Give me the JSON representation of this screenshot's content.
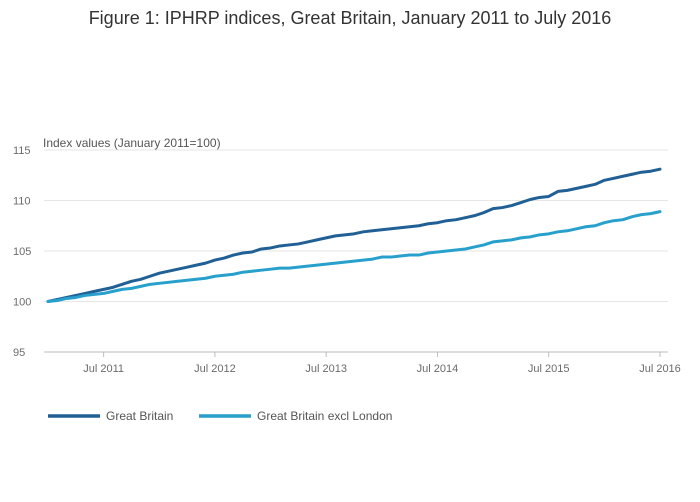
{
  "chart_data": {
    "type": "line",
    "title": "Figure 1: IPHRP indices, Great Britain, January 2011 to July 2016",
    "ylabel": "Index values (January 2011=100)",
    "xlabel": "",
    "ylim": [
      95,
      115
    ],
    "yticks": [
      95,
      100,
      105,
      110,
      115
    ],
    "xticks": [
      {
        "label": "Jul 2011",
        "t": 6
      },
      {
        "label": "Jul 2012",
        "t": 18
      },
      {
        "label": "Jul 2013",
        "t": 30
      },
      {
        "label": "Jul 2014",
        "t": 42
      },
      {
        "label": "Jul 2015",
        "t": 54
      },
      {
        "label": "Jul 2016",
        "t": 66
      }
    ],
    "x_start": "Jan 2011",
    "x_end": "Jul 2016",
    "grid": true,
    "legend_position": "bottom",
    "series": [
      {
        "name": "Great Britain",
        "color": "#206095",
        "values": [
          100.0,
          100.2,
          100.4,
          100.6,
          100.8,
          101.0,
          101.2,
          101.4,
          101.7,
          102.0,
          102.2,
          102.5,
          102.8,
          103.0,
          103.2,
          103.4,
          103.6,
          103.8,
          104.1,
          104.3,
          104.6,
          104.8,
          104.9,
          105.2,
          105.3,
          105.5,
          105.6,
          105.7,
          105.9,
          106.1,
          106.3,
          106.5,
          106.6,
          106.7,
          106.9,
          107.0,
          107.1,
          107.2,
          107.3,
          107.4,
          107.5,
          107.7,
          107.8,
          108.0,
          108.1,
          108.3,
          108.5,
          108.8,
          109.2,
          109.3,
          109.5,
          109.8,
          110.1,
          110.3,
          110.4,
          110.9,
          111.0,
          111.2,
          111.4,
          111.6,
          112.0,
          112.2,
          112.4,
          112.6,
          112.8,
          112.9,
          113.1
        ]
      },
      {
        "name": "Great Britain excl London",
        "color": "#27a0cc",
        "values": [
          100.0,
          100.1,
          100.3,
          100.4,
          100.6,
          100.7,
          100.8,
          101.0,
          101.2,
          101.3,
          101.5,
          101.7,
          101.8,
          101.9,
          102.0,
          102.1,
          102.2,
          102.3,
          102.5,
          102.6,
          102.7,
          102.9,
          103.0,
          103.1,
          103.2,
          103.3,
          103.3,
          103.4,
          103.5,
          103.6,
          103.7,
          103.8,
          103.9,
          104.0,
          104.1,
          104.2,
          104.4,
          104.4,
          104.5,
          104.6,
          104.6,
          104.8,
          104.9,
          105.0,
          105.1,
          105.2,
          105.4,
          105.6,
          105.9,
          106.0,
          106.1,
          106.3,
          106.4,
          106.6,
          106.7,
          106.9,
          107.0,
          107.2,
          107.4,
          107.5,
          107.8,
          108.0,
          108.1,
          108.4,
          108.6,
          108.7,
          108.9
        ]
      }
    ]
  }
}
